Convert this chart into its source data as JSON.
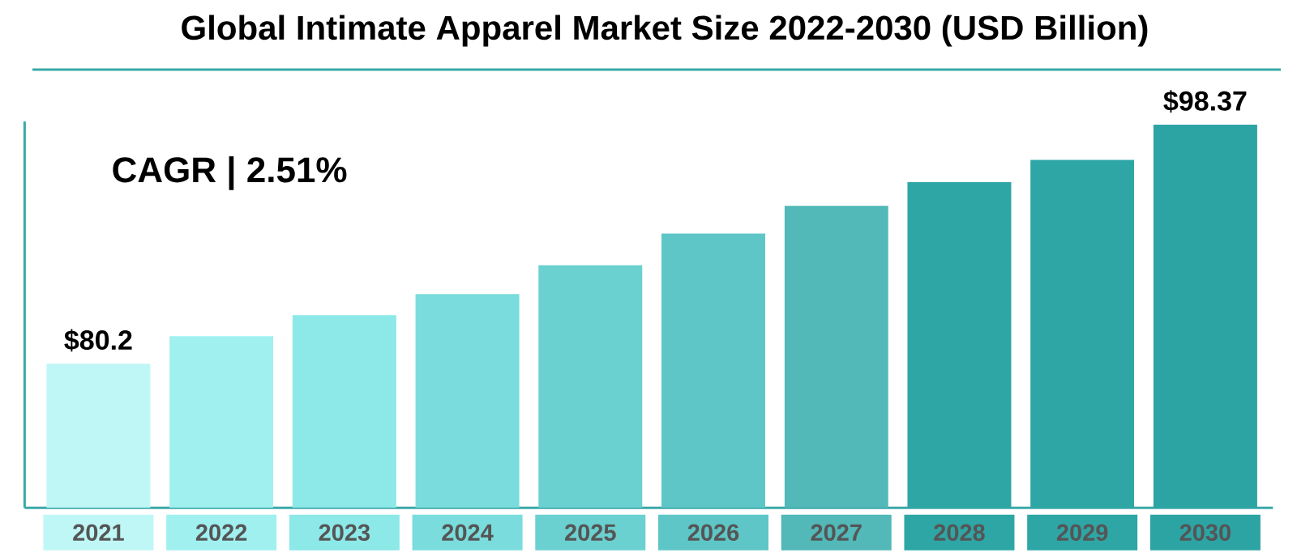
{
  "chart_data": {
    "type": "bar",
    "title": "Global Intimate Apparel Market Size 2022-2030 (USD Billion)",
    "categories": [
      "2021",
      "2022",
      "2023",
      "2024",
      "2025",
      "2026",
      "2027",
      "2028",
      "2029",
      "2030"
    ],
    "values": [
      80.2,
      82.3,
      83.9,
      85.5,
      87.7,
      90.1,
      92.2,
      94.0,
      95.7,
      98.37
    ],
    "colors": [
      "#bff7f7",
      "#a0f0f0",
      "#8de8e8",
      "#7adcdc",
      "#6bd0d0",
      "#5ec6c6",
      "#52b8b8",
      "#2ea6a6",
      "#2ea6a6",
      "#2ca4a4"
    ],
    "value_labels": [
      "$80.2",
      null,
      null,
      null,
      null,
      null,
      null,
      null,
      null,
      "$98.37"
    ],
    "ylim": [
      69.25,
      98.62
    ],
    "tick_labels": "x",
    "annotations": [
      "CAGR | 2.51%"
    ]
  }
}
